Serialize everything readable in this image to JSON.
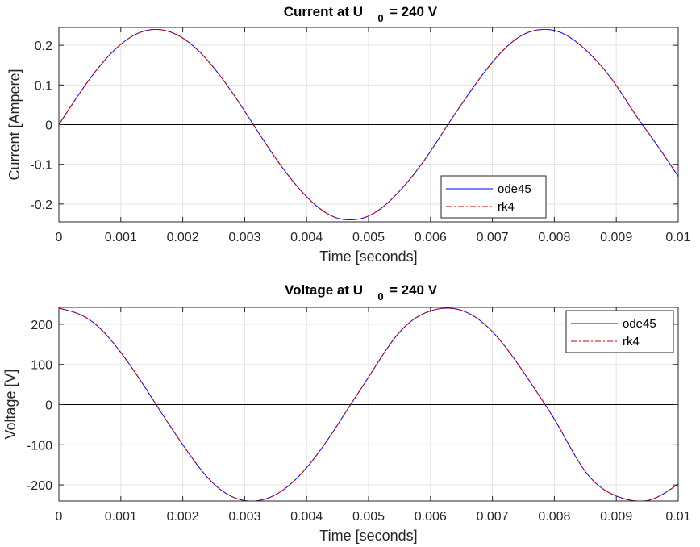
{
  "chart_data": [
    {
      "type": "line",
      "title": {
        "main": "Current at U",
        "sub": "0",
        "rest": " = 240 V"
      },
      "xlabel": "Time [seconds]",
      "ylabel": "Current [Ampere]",
      "xlim": [
        0,
        0.01
      ],
      "ylim": [
        -0.245,
        0.245
      ],
      "xticks": [
        0,
        0.001,
        0.002,
        0.003,
        0.004,
        0.005,
        0.006,
        0.007,
        0.008,
        0.009,
        0.01
      ],
      "xtick_labels": [
        "0",
        "0.001",
        "0.002",
        "0.003",
        "0.004",
        "0.005",
        "0.006",
        "0.007",
        "0.008",
        "0.009",
        "0.01"
      ],
      "yticks": [
        -0.2,
        -0.1,
        0,
        0.1,
        0.2
      ],
      "ytick_labels": [
        "-0.2",
        "-0.1",
        "0",
        "0.1",
        "0.2"
      ],
      "grid": true,
      "zero_line": true,
      "legend_position": "bottom-right",
      "x": [
        0,
        0.0005,
        0.001,
        0.0015,
        0.00157,
        0.002,
        0.0025,
        0.003,
        0.00314,
        0.0035,
        0.004,
        0.0045,
        0.00471,
        0.005,
        0.0055,
        0.006,
        0.00628,
        0.0065,
        0.007,
        0.0075,
        0.00785,
        0.008,
        0.0085,
        0.009,
        0.00942,
        0.0095,
        0.01
      ],
      "series": [
        {
          "name": "ode45",
          "color": "#0000ff",
          "dash": "solid",
          "values": [
            0,
            0.1155,
            0.2025,
            0.2396,
            0.24,
            0.2182,
            0.1436,
            0.0339,
            0,
            -0.0846,
            -0.1816,
            -0.2357,
            -0.24,
            -0.2302,
            -0.1675,
            -0.0673,
            0,
            0.0511,
            0.1576,
            0.2271,
            0.24,
            0.2374,
            0.1893,
            0.0987,
            0,
            -0.017,
            -0.1306
          ]
        },
        {
          "name": "rk4",
          "color": "#cc0000",
          "dash": "dashdot",
          "values": [
            0,
            0.1155,
            0.2025,
            0.2396,
            0.24,
            0.2182,
            0.1436,
            0.0339,
            0,
            -0.0846,
            -0.1816,
            -0.2357,
            -0.24,
            -0.2302,
            -0.1675,
            -0.0673,
            0,
            0.0511,
            0.1576,
            0.2271,
            0.24,
            0.2374,
            0.1893,
            0.0987,
            0,
            -0.017,
            -0.1306
          ]
        }
      ]
    },
    {
      "type": "line",
      "title": {
        "main": "Voltage at U",
        "sub": "0",
        "rest": " = 240 V"
      },
      "xlabel": "Time [seconds]",
      "ylabel": "Voltage [V]",
      "xlim": [
        0,
        0.01
      ],
      "ylim": [
        -240,
        242
      ],
      "xticks": [
        0,
        0.001,
        0.002,
        0.003,
        0.004,
        0.005,
        0.006,
        0.007,
        0.008,
        0.009,
        0.01
      ],
      "xtick_labels": [
        "0",
        "0.001",
        "0.002",
        "0.003",
        "0.004",
        "0.005",
        "0.006",
        "0.007",
        "0.008",
        "0.009",
        "0.01"
      ],
      "yticks": [
        -200,
        -100,
        0,
        100,
        200
      ],
      "ytick_labels": [
        "-200",
        "-100",
        "0",
        "100",
        "200"
      ],
      "grid": true,
      "zero_line": true,
      "legend_position": "top-right",
      "x": [
        0,
        0.0005,
        0.001,
        0.0015,
        0.00157,
        0.002,
        0.0025,
        0.003,
        0.00314,
        0.0035,
        0.004,
        0.0045,
        0.00471,
        0.005,
        0.0055,
        0.006,
        0.00628,
        0.0065,
        0.007,
        0.0075,
        0.00785,
        0.008,
        0.0085,
        0.009,
        0.00942,
        0.0095,
        0.01
      ],
      "series": [
        {
          "name": "ode45",
          "color": "#0000ff",
          "dash": "solid",
          "values": [
            240,
            210.6,
            129.7,
            16.9,
            0,
            -99.8,
            -197.2,
            -238.8,
            -240,
            -224.1,
            -157.0,
            -50.4,
            0,
            68.3,
            180.2,
            233.1,
            240,
            234.5,
            181.4,
            81.2,
            0,
            -36.3,
            -166.5,
            -227.5,
            -240,
            -238.7,
            -197.3
          ]
        },
        {
          "name": "rk4",
          "color": "#cc0000",
          "dash": "dashdot",
          "values": [
            240,
            210.6,
            129.7,
            16.9,
            0,
            -99.8,
            -197.2,
            -238.8,
            -240,
            -224.1,
            -157.0,
            -50.4,
            0,
            68.3,
            180.2,
            233.1,
            240,
            234.5,
            181.4,
            81.2,
            0,
            -36.3,
            -166.5,
            -227.5,
            -240,
            -238.7,
            -197.3
          ]
        }
      ]
    }
  ]
}
